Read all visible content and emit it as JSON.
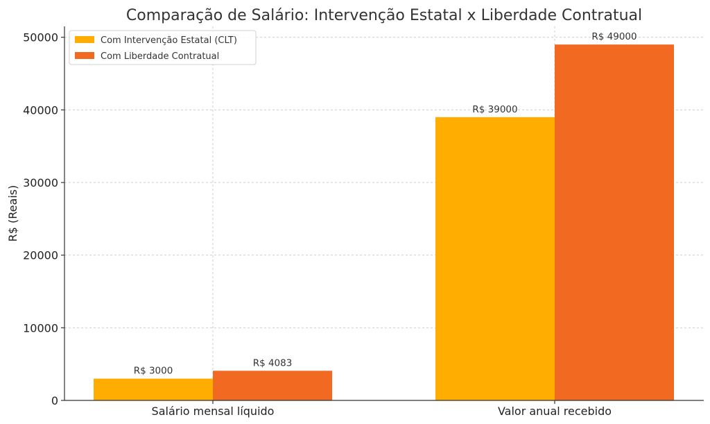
{
  "chart_data": {
    "type": "bar",
    "title": "Comparação de Salário: Intervenção Estatal x Liberdade Contratual",
    "xlabel": "",
    "ylabel": "R$ (Reais)",
    "categories": [
      "Salário mensal líquido",
      "Valor anual recebido"
    ],
    "series": [
      {
        "name": "Com Intervenção Estatal (CLT)",
        "color": "#FFAD00",
        "values": [
          3000,
          39000
        ],
        "labels": [
          "R$ 3000",
          "R$ 39000"
        ]
      },
      {
        "name": "Com Liberdade Contratual",
        "color": "#F26A21",
        "values": [
          4083,
          49000
        ],
        "labels": [
          "R$ 4083",
          "R$ 49000"
        ]
      }
    ],
    "ylim": [
      0,
      51500
    ],
    "yticks": [
      0,
      10000,
      20000,
      30000,
      40000,
      50000
    ],
    "grid": true,
    "legend_position": "top-left"
  }
}
